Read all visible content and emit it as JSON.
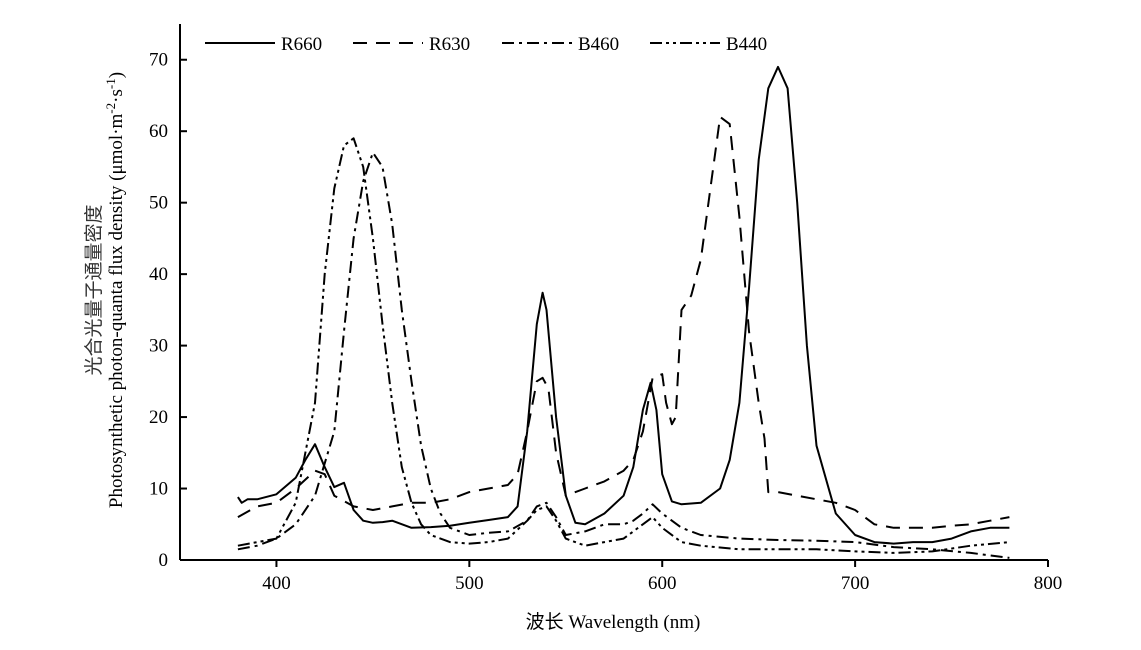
{
  "chart_data": {
    "type": "line",
    "xlabel": "波长 Wavelength (nm)",
    "ylabel_cn": "光合光量子通量密度",
    "ylabel": "Photosynthetic photon-quanta flux density (μmol·m⁻²·s⁻¹)",
    "ylabel_parts": {
      "main": "Photosynthetic photon-quanta flux density (μmol·m",
      "sup1": "-2",
      "mid": "·s",
      "sup2": "-1",
      "end": ")"
    },
    "xlim": [
      350,
      800
    ],
    "ylim": [
      0,
      75
    ],
    "x_ticks": [
      400,
      500,
      600,
      700,
      800
    ],
    "y_ticks": [
      0,
      10,
      20,
      30,
      40,
      50,
      60,
      70
    ],
    "grid": false,
    "legend_position": "top",
    "series": [
      {
        "name": "R660",
        "dash": "solid",
        "x": [
          380,
          382,
          385,
          390,
          400,
          410,
          415,
          420,
          425,
          430,
          435,
          440,
          445,
          450,
          455,
          460,
          470,
          480,
          490,
          500,
          510,
          520,
          525,
          530,
          535,
          538,
          540,
          545,
          550,
          555,
          560,
          570,
          580,
          585,
          590,
          594,
          597,
          600,
          605,
          610,
          620,
          630,
          635,
          640,
          645,
          650,
          655,
          660,
          665,
          670,
          675,
          680,
          690,
          700,
          710,
          720,
          730,
          740,
          750,
          760,
          770,
          780
        ],
        "y": [
          8.8,
          8.0,
          8.5,
          8.5,
          9.2,
          11.5,
          14.0,
          16.2,
          13.0,
          10.2,
          10.8,
          7.0,
          5.5,
          5.2,
          5.3,
          5.5,
          4.5,
          4.6,
          4.8,
          5.2,
          5.6,
          6.0,
          7.5,
          18.0,
          33.0,
          37.4,
          35.0,
          20.0,
          9.0,
          5.2,
          5.0,
          6.5,
          9.0,
          13.0,
          21.0,
          24.8,
          21.0,
          12.0,
          8.2,
          7.8,
          8.0,
          10.0,
          14.0,
          22.0,
          38.0,
          56.0,
          66.0,
          69.0,
          66.0,
          50.0,
          30.0,
          16.0,
          6.5,
          3.5,
          2.5,
          2.3,
          2.5,
          2.5,
          3.0,
          4.0,
          4.5,
          4.5
        ]
      },
      {
        "name": "R630",
        "dash": "dashed",
        "x": [
          380,
          390,
          400,
          410,
          420,
          425,
          430,
          440,
          450,
          460,
          470,
          480,
          490,
          500,
          510,
          520,
          525,
          530,
          535,
          538,
          541,
          545,
          550,
          560,
          570,
          580,
          585,
          590,
          595,
          600,
          602,
          605,
          607,
          610,
          615,
          620,
          625,
          630,
          635,
          640,
          645,
          650,
          653,
          655,
          660,
          670,
          680,
          690,
          700,
          710,
          720,
          730,
          740,
          750,
          760,
          770,
          780
        ],
        "y": [
          6.0,
          7.5,
          8.0,
          10.0,
          12.5,
          12.0,
          9.0,
          7.5,
          7.0,
          7.5,
          8.0,
          8.0,
          8.5,
          9.5,
          10.0,
          10.5,
          12.0,
          18.0,
          25.0,
          25.5,
          24.0,
          15.0,
          9.0,
          10.0,
          11.0,
          12.5,
          14.0,
          18.0,
          25.5,
          26.0,
          22.0,
          19.0,
          20.0,
          35.0,
          37.0,
          42.0,
          52.0,
          62.0,
          61.0,
          48.0,
          32.0,
          22.0,
          17.0,
          9.5,
          9.5,
          9.0,
          8.5,
          8.0,
          7.0,
          5.0,
          4.5,
          4.5,
          4.5,
          4.8,
          5.0,
          5.5,
          6.0
        ]
      },
      {
        "name": "B460",
        "dash": "dashdot",
        "x": [
          380,
          390,
          400,
          410,
          420,
          430,
          435,
          440,
          445,
          450,
          455,
          460,
          465,
          470,
          475,
          480,
          485,
          490,
          500,
          510,
          520,
          530,
          535,
          540,
          545,
          550,
          560,
          570,
          580,
          585,
          590,
          595,
          600,
          610,
          620,
          640,
          660,
          680,
          700,
          720,
          740,
          760,
          780
        ],
        "y": [
          1.5,
          2.0,
          3.0,
          5.0,
          9.0,
          18.0,
          32.0,
          45.0,
          53.0,
          57.0,
          55.0,
          47.0,
          35.0,
          25.0,
          16.0,
          10.0,
          6.5,
          4.5,
          3.5,
          3.8,
          4.0,
          5.5,
          7.5,
          8.0,
          6.0,
          3.5,
          4.0,
          5.0,
          5.0,
          5.5,
          6.5,
          7.8,
          6.5,
          4.5,
          3.5,
          3.0,
          2.8,
          2.7,
          2.5,
          1.8,
          1.5,
          1.0,
          0.3
        ]
      },
      {
        "name": "B440",
        "dash": "dashdotdot",
        "x": [
          380,
          390,
          400,
          410,
          420,
          425,
          430,
          435,
          440,
          445,
          450,
          455,
          460,
          465,
          470,
          475,
          480,
          490,
          500,
          510,
          520,
          530,
          535,
          540,
          545,
          550,
          560,
          570,
          580,
          585,
          590,
          595,
          600,
          610,
          620,
          640,
          660,
          680,
          700,
          720,
          740,
          760,
          780
        ],
        "y": [
          2.0,
          2.5,
          3.0,
          8.0,
          22.0,
          40.0,
          52.0,
          58.0,
          59.0,
          55.0,
          45.0,
          33.0,
          22.0,
          13.0,
          8.0,
          5.0,
          3.5,
          2.5,
          2.3,
          2.5,
          3.0,
          5.5,
          7.0,
          7.5,
          5.5,
          3.0,
          2.0,
          2.5,
          3.0,
          4.0,
          5.0,
          6.0,
          4.5,
          2.5,
          2.0,
          1.5,
          1.5,
          1.5,
          1.2,
          1.0,
          1.2,
          2.0,
          2.5
        ]
      }
    ]
  }
}
